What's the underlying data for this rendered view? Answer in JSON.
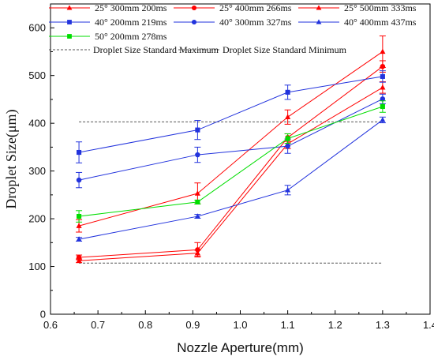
{
  "chart_data": {
    "type": "line",
    "xlabel": "Nozzle Aperture(mm)",
    "ylabel": "Droplet Size(μm)",
    "xlim": [
      0.6,
      1.4
    ],
    "ylim": [
      0,
      650
    ],
    "x_ticks": [
      0.6,
      0.7,
      0.8,
      0.9,
      1.0,
      1.1,
      1.2,
      1.3,
      1.4
    ],
    "x_tick_labels": [
      "0.6",
      "0.7",
      "0.8",
      "0.9",
      "1.0",
      "1.1",
      "1.2",
      "1.3",
      "1.4"
    ],
    "y_ticks": [
      0,
      100,
      200,
      300,
      400,
      500,
      600
    ],
    "y_tick_labels": [
      "0",
      "100",
      "200",
      "300",
      "400",
      "500",
      "600"
    ],
    "x": [
      0.66,
      0.91,
      1.1,
      1.3
    ],
    "series": [
      {
        "name": "25° 300mm 200ms",
        "color": "#ff0000",
        "marker": "triangle",
        "values": [
          185,
          253,
          413,
          550
        ],
        "errors": [
          13,
          22,
          15,
          33
        ]
      },
      {
        "name": "25° 400mm 266ms",
        "color": "#ff0000",
        "marker": "circle",
        "values": [
          119,
          135,
          370,
          519
        ],
        "errors": [
          5,
          15,
          8,
          12
        ]
      },
      {
        "name": "25° 500mm 333ms",
        "color": "#ff0000",
        "marker": "triangle",
        "values": [
          112,
          128,
          357,
          475
        ],
        "errors": [
          4,
          6,
          10,
          12
        ]
      },
      {
        "name": "40° 200mm 219ms",
        "color": "#2233dd",
        "marker": "square",
        "values": [
          339,
          386,
          465,
          498
        ],
        "errors": [
          22,
          20,
          15,
          12
        ]
      },
      {
        "name": "40° 300mm 327ms",
        "color": "#2233dd",
        "marker": "circle",
        "values": [
          281,
          334,
          352,
          451
        ],
        "errors": [
          16,
          16,
          15,
          10
        ]
      },
      {
        "name": "40° 400mm 437ms",
        "color": "#2233dd",
        "marker": "triangle",
        "values": [
          157,
          205,
          260,
          407
        ],
        "errors": [
          4,
          4,
          10,
          6
        ]
      },
      {
        "name": "50° 200mm 278ms",
        "color": "#00dd00",
        "marker": "square",
        "values": [
          205,
          235,
          368,
          435
        ],
        "errors": [
          12,
          4,
          10,
          12
        ]
      }
    ],
    "reference_lines": [
      {
        "name": "Droplet Size Standard Maximum",
        "y": 403,
        "x_range": [
          0.66,
          1.3
        ],
        "color": "#555555",
        "style": "dashed"
      },
      {
        "name": "Droplet Size Standard Minimum",
        "y": 107,
        "x_range": [
          0.66,
          1.3
        ],
        "color": "#555555",
        "style": "dashed"
      }
    ],
    "legend": {
      "placement": "top-left",
      "columns": 3
    },
    "grid": false
  }
}
